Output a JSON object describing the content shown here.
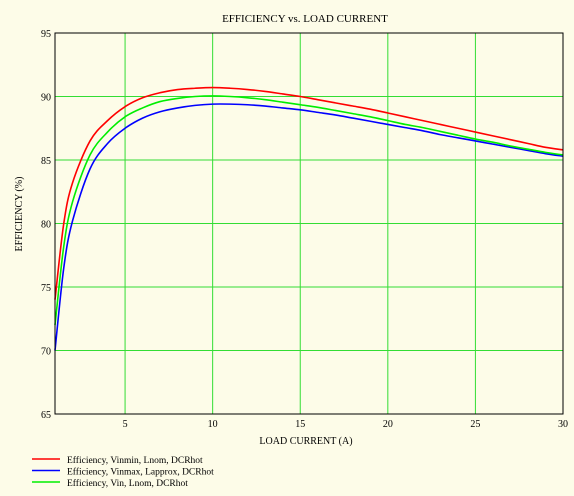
{
  "chart_data": {
    "type": "line",
    "title": "EFFICIENCY vs. LOAD CURRENT",
    "xlabel": "LOAD CURRENT (A)",
    "ylabel": "EFFICIENCY (%)",
    "xlim": [
      1,
      30
    ],
    "ylim": [
      65,
      95
    ],
    "xticks": [
      5,
      10,
      15,
      20,
      25,
      30
    ],
    "yticks": [
      65,
      70,
      75,
      80,
      85,
      90,
      95
    ],
    "grid": true,
    "grid_color": "#33dd33",
    "background": "#fdfce8",
    "legend_position": "bottom-left",
    "x": [
      1,
      1.5,
      2,
      3,
      4,
      5,
      6,
      7,
      8,
      9,
      10,
      11,
      12,
      13,
      14,
      15,
      16,
      17,
      18,
      19,
      20,
      21,
      22,
      23,
      24,
      25,
      26,
      27,
      28,
      29,
      30
    ],
    "series": [
      {
        "name": "Efficiency, Vinmin, Lnom, DCRhot",
        "color": "#ff0000",
        "values": [
          74.0,
          80.0,
          83.2,
          86.5,
          88.1,
          89.2,
          89.9,
          90.3,
          90.55,
          90.65,
          90.7,
          90.65,
          90.55,
          90.4,
          90.2,
          90.0,
          89.75,
          89.5,
          89.25,
          89.0,
          88.7,
          88.4,
          88.1,
          87.8,
          87.5,
          87.2,
          86.9,
          86.6,
          86.3,
          86.0,
          85.8
        ]
      },
      {
        "name": "Efficiency, Vinmax, Lapprox, DCRhot",
        "color": "#0000ff",
        "values": [
          70.0,
          76.5,
          80.2,
          84.3,
          86.3,
          87.5,
          88.3,
          88.8,
          89.1,
          89.3,
          89.4,
          89.4,
          89.35,
          89.25,
          89.1,
          88.95,
          88.75,
          88.55,
          88.3,
          88.05,
          87.8,
          87.55,
          87.3,
          87.0,
          86.75,
          86.5,
          86.25,
          86.0,
          85.75,
          85.5,
          85.3
        ]
      },
      {
        "name": "Efficiency, Vin, Lnom, DCRhot",
        "color": "#00ee00",
        "values": [
          72.0,
          78.2,
          81.7,
          85.4,
          87.2,
          88.4,
          89.1,
          89.6,
          89.85,
          90.0,
          90.05,
          90.0,
          89.9,
          89.75,
          89.55,
          89.35,
          89.15,
          88.9,
          88.65,
          88.4,
          88.1,
          87.8,
          87.55,
          87.25,
          86.95,
          86.65,
          86.4,
          86.1,
          85.85,
          85.6,
          85.4
        ]
      }
    ]
  }
}
